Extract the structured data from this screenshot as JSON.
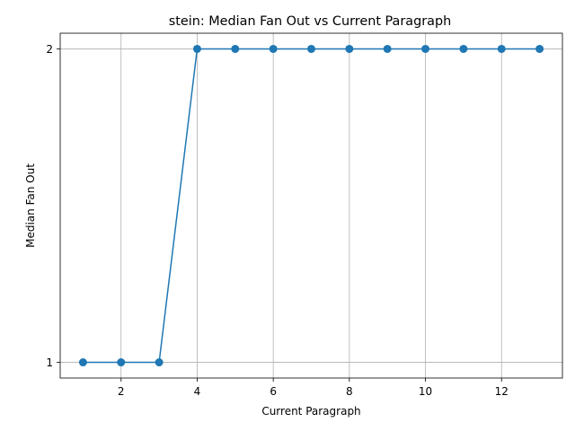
{
  "chart_data": {
    "type": "line",
    "title": "stein: Median Fan Out vs Current Paragraph",
    "xlabel": "Current Paragraph",
    "ylabel": "Median Fan Out",
    "x": [
      1,
      2,
      3,
      4,
      5,
      6,
      7,
      8,
      9,
      10,
      11,
      12,
      13
    ],
    "series": [
      {
        "values": [
          1,
          1,
          1,
          2,
          2,
          2,
          2,
          2,
          2,
          2,
          2,
          2,
          2
        ]
      }
    ],
    "xlim": [
      0.4,
      13.6
    ],
    "ylim": [
      0.95,
      2.05
    ],
    "xticks": [
      2,
      4,
      6,
      8,
      10,
      12
    ],
    "yticks": [
      1,
      2
    ],
    "xtick_labels": [
      "2",
      "4",
      "6",
      "8",
      "10",
      "12"
    ],
    "ytick_labels": [
      "1",
      "2"
    ],
    "grid": true,
    "marker": "circle",
    "line_color": "#1f77b4"
  }
}
